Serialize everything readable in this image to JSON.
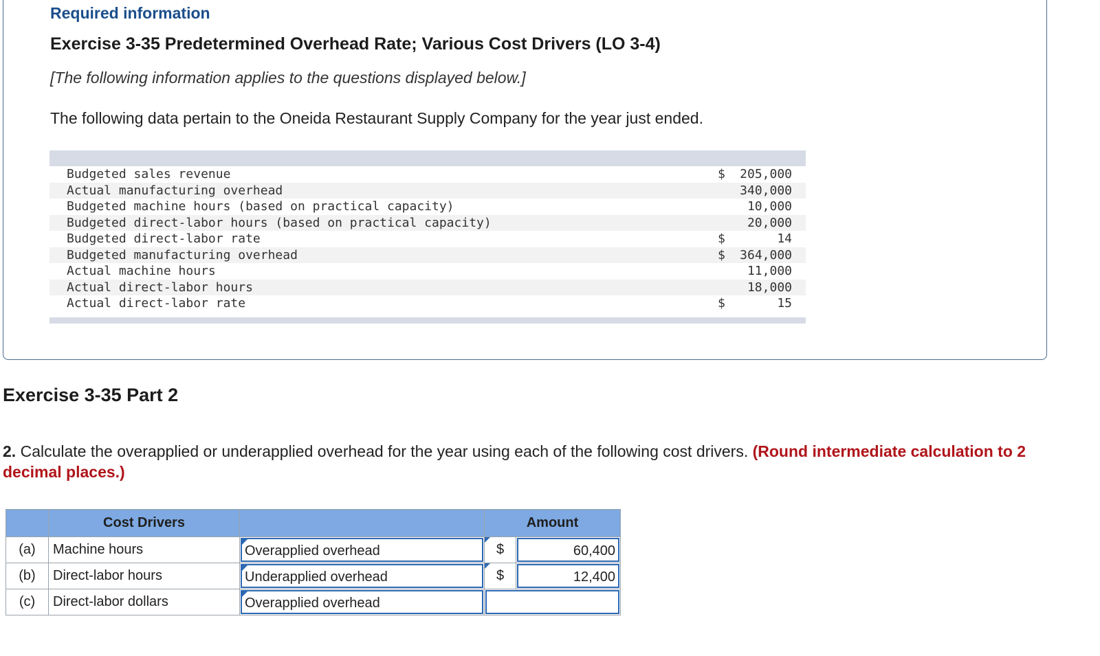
{
  "header": {
    "required_info": "Required information",
    "exercise_title": "Exercise 3-35 Predetermined Overhead Rate; Various Cost Drivers (LO 3-4)",
    "applies_note": "[The following information applies to the questions displayed below.]",
    "intro": "The following data pertain to the Oneida Restaurant Supply Company for the year just ended."
  },
  "data_table": {
    "rows": [
      {
        "label": "Budgeted sales revenue",
        "currency": "$",
        "value": "205,000"
      },
      {
        "label": "Actual manufacturing overhead",
        "currency": "",
        "value": "340,000"
      },
      {
        "label": "Budgeted machine hours (based on practical capacity)",
        "currency": "",
        "value": "10,000"
      },
      {
        "label": "Budgeted direct-labor hours (based on practical capacity)",
        "currency": "",
        "value": "20,000"
      },
      {
        "label": "Budgeted direct-labor rate",
        "currency": "$",
        "value": "14"
      },
      {
        "label": "Budgeted manufacturing overhead",
        "currency": "$",
        "value": "364,000"
      },
      {
        "label": "Actual machine hours",
        "currency": "",
        "value": "11,000"
      },
      {
        "label": "Actual direct-labor hours",
        "currency": "",
        "value": "18,000"
      },
      {
        "label": "Actual direct-labor rate",
        "currency": "$",
        "value": "15"
      }
    ]
  },
  "part": {
    "title": "Exercise 3-35 Part 2",
    "question_number": "2.",
    "question_text": " Calculate the overapplied or underapplied overhead for the year using each of the following cost drivers. ",
    "round_note": "(Round intermediate calculation to 2 decimal places.)"
  },
  "answer_table": {
    "header_drivers": "Cost Drivers",
    "header_amount": "Amount",
    "rows": [
      {
        "letter": "(a)",
        "driver": "Machine hours",
        "selection": "Overapplied overhead",
        "currency": "$",
        "amount": "60,400"
      },
      {
        "letter": "(b)",
        "driver": "Direct-labor hours",
        "selection": "Underapplied overhead",
        "currency": "$",
        "amount": "12,400"
      },
      {
        "letter": "(c)",
        "driver": "Direct-labor dollars",
        "selection": "Overapplied overhead",
        "currency": "",
        "amount": ""
      }
    ]
  },
  "colors": {
    "accent_blue": "#1b4e8c",
    "header_blue": "#7ea9e2",
    "round_note_red": "#b0141a"
  }
}
